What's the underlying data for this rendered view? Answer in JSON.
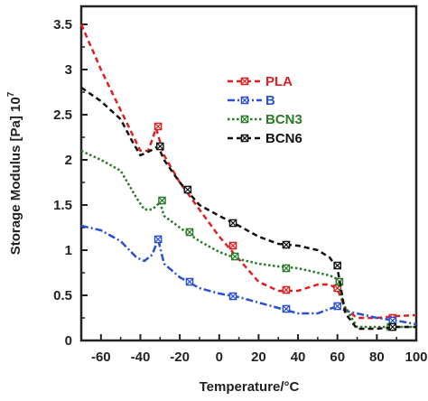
{
  "chart_data": {
    "type": "line",
    "xlabel": "Temperature/°C",
    "ylabel": "Storage Modulus [Pa] 10",
    "ylabel_exponent": "7",
    "xlim": [
      -70,
      100
    ],
    "ylim": [
      0,
      3.7
    ],
    "x_ticks": [
      -60,
      -40,
      -20,
      0,
      20,
      40,
      60,
      80,
      100
    ],
    "x_tick_labels": [
      "-60",
      "-40",
      "-20",
      "0",
      "20",
      "40",
      "60",
      "80",
      "100"
    ],
    "y_ticks": [
      0,
      0.5,
      1,
      1.5,
      2,
      2.5,
      3,
      3.5
    ],
    "y_tick_labels": [
      "0",
      "0.5",
      "1",
      "1.5",
      "2",
      "2.5",
      "3",
      "3.5"
    ],
    "legend_position": "upper-right",
    "series": [
      {
        "name": "PLA",
        "color": "#e02020",
        "dash": "dash",
        "x": [
          -70,
          -60,
          -50,
          -40,
          -36,
          -32,
          -28,
          -20,
          -10,
          0,
          10,
          20,
          30,
          40,
          50,
          56,
          60,
          64,
          70,
          80,
          90,
          100
        ],
        "y": [
          3.5,
          3.0,
          2.55,
          2.1,
          2.1,
          2.35,
          2.05,
          1.75,
          1.45,
          1.15,
          0.9,
          0.65,
          0.55,
          0.55,
          0.62,
          0.62,
          0.57,
          0.35,
          0.25,
          0.25,
          0.27,
          0.28
        ],
        "markers_x": [
          -31,
          7,
          34,
          60,
          88
        ],
        "markers_y": [
          2.37,
          1.05,
          0.56,
          0.58,
          0.25
        ]
      },
      {
        "name": "B",
        "color": "#2a4fd8",
        "dash": "dashdot",
        "x": [
          -70,
          -60,
          -50,
          -42,
          -38,
          -34,
          -31,
          -28,
          -20,
          -10,
          0,
          10,
          20,
          30,
          40,
          50,
          56,
          60,
          64,
          70,
          80,
          90,
          100
        ],
        "y": [
          1.27,
          1.22,
          1.1,
          0.92,
          0.88,
          0.95,
          1.12,
          0.85,
          0.7,
          0.58,
          0.52,
          0.48,
          0.42,
          0.36,
          0.3,
          0.3,
          0.35,
          0.38,
          0.33,
          0.3,
          0.25,
          0.22,
          0.18
        ],
        "markers_x": [
          -31,
          -15,
          7,
          34,
          60,
          88
        ],
        "markers_y": [
          1.12,
          0.65,
          0.49,
          0.35,
          0.38,
          0.22
        ]
      },
      {
        "name": "BCN3",
        "color": "#2a7a2a",
        "dash": "dot",
        "x": [
          -70,
          -60,
          -50,
          -42,
          -38,
          -34,
          -30,
          -28,
          -20,
          -10,
          0,
          10,
          20,
          30,
          40,
          50,
          56,
          60,
          63,
          70,
          80,
          90,
          100
        ],
        "y": [
          2.1,
          2.0,
          1.88,
          1.58,
          1.45,
          1.45,
          1.53,
          1.38,
          1.25,
          1.1,
          0.98,
          0.9,
          0.85,
          0.82,
          0.8,
          0.75,
          0.72,
          0.68,
          0.4,
          0.15,
          0.15,
          0.15,
          0.15
        ],
        "markers_x": [
          -29,
          -15,
          8,
          34,
          61,
          87
        ],
        "markers_y": [
          1.55,
          1.2,
          0.93,
          0.8,
          0.65,
          0.15
        ]
      },
      {
        "name": "BCN6",
        "color": "#111111",
        "dash": "dash",
        "x": [
          -70,
          -60,
          -50,
          -44,
          -40,
          -35,
          -31,
          -28,
          -20,
          -10,
          0,
          10,
          20,
          30,
          40,
          50,
          56,
          60,
          64,
          70,
          80,
          90,
          100
        ],
        "y": [
          2.8,
          2.65,
          2.45,
          2.2,
          2.05,
          2.1,
          2.15,
          2.0,
          1.75,
          1.5,
          1.38,
          1.27,
          1.15,
          1.07,
          1.05,
          1.0,
          0.92,
          0.8,
          0.3,
          0.13,
          0.13,
          0.15,
          0.15
        ],
        "markers_x": [
          -30,
          -16,
          7,
          34,
          60,
          88
        ],
        "markers_y": [
          2.15,
          1.67,
          1.3,
          1.06,
          0.83,
          0.15
        ]
      }
    ]
  }
}
